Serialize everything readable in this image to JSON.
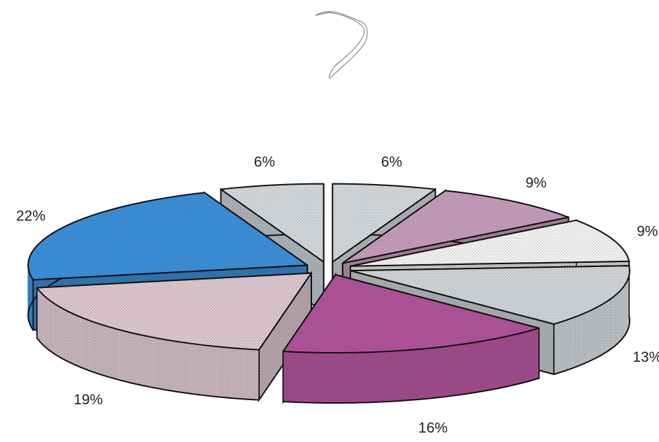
{
  "chart_data": {
    "type": "pie3d",
    "values": [
      6,
      9,
      9,
      13,
      16,
      19,
      22,
      6
    ],
    "value_labels": [
      "6%",
      "9%",
      "9%",
      "13%",
      "16%",
      "19%",
      "22%",
      "6%"
    ],
    "colors": [
      "#d6dce0",
      "#c99fbe",
      "#f6f6f4",
      "#d3d8db",
      "#b4559e",
      "#e2cbd3",
      "#3d92dc",
      "#d6dce0"
    ],
    "start_angle": 0,
    "direction": "clockwise"
  }
}
